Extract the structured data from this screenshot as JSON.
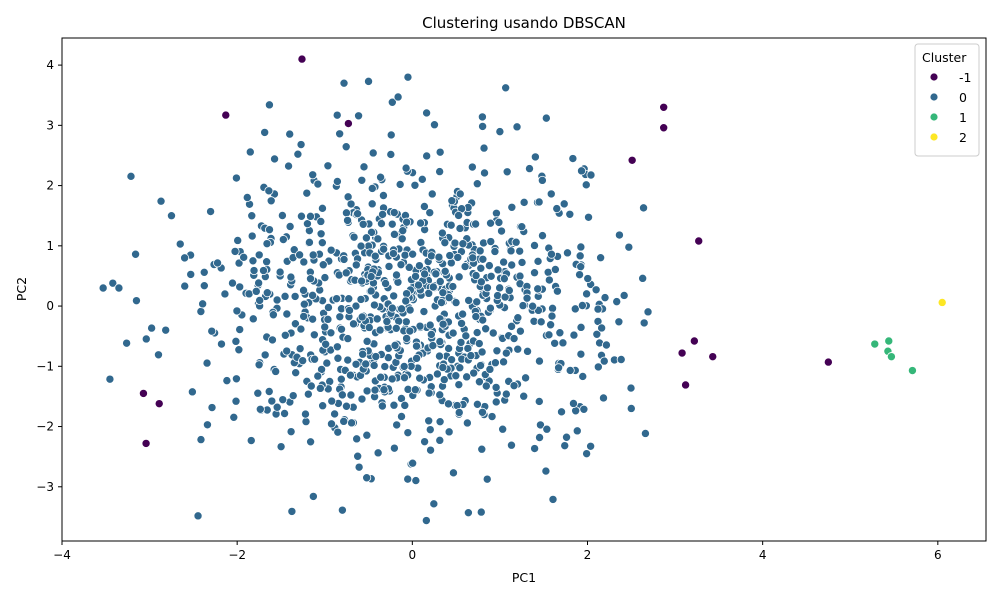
{
  "chart_data": {
    "type": "scatter",
    "title": "Clustering usando DBSCAN",
    "xlabel": "PC1",
    "ylabel": "PC2",
    "xlim": [
      -4.0,
      6.55
    ],
    "ylim": [
      -3.9,
      4.45
    ],
    "xticks": [
      -4,
      -2,
      0,
      2,
      4,
      6
    ],
    "yticks": [
      -3,
      -2,
      -1,
      0,
      1,
      2,
      3,
      4
    ],
    "grid": false,
    "legend": {
      "title": "Cluster",
      "placement": "top-right",
      "entries": [
        {
          "label": "-1",
          "color": "#440154"
        },
        {
          "label": "0",
          "color": "#31688e"
        },
        {
          "label": "1",
          "color": "#35b779"
        },
        {
          "label": "2",
          "color": "#fde725"
        }
      ]
    },
    "series": [
      {
        "name": "-1",
        "color": "#440154",
        "points": [
          [
            -1.26,
            4.1
          ],
          [
            -2.13,
            3.17
          ],
          [
            -0.73,
            3.03
          ],
          [
            2.87,
            3.3
          ],
          [
            2.87,
            2.96
          ],
          [
            2.51,
            2.42
          ],
          [
            3.27,
            1.08
          ],
          [
            3.22,
            -0.58
          ],
          [
            3.08,
            -0.78
          ],
          [
            3.43,
            -0.84
          ],
          [
            4.75,
            -0.93
          ],
          [
            3.12,
            -1.31
          ],
          [
            -3.07,
            -1.45
          ],
          [
            -2.89,
            -1.62
          ],
          [
            -3.04,
            -2.28
          ]
        ]
      },
      {
        "name": "0",
        "color": "#31688e",
        "count": 980,
        "seed": 7,
        "mean": [
          0,
          0
        ],
        "sd": [
          1.15,
          1.2
        ],
        "range_x": [
          -3.55,
          2.7
        ],
        "range_y": [
          -3.6,
          3.8
        ],
        "points": [
          [
            -3.53,
            0.3
          ],
          [
            -3.42,
            0.38
          ],
          [
            -3.35,
            0.3
          ],
          [
            -3.16,
            0.86
          ],
          [
            -3.15,
            0.09
          ],
          [
            -2.75,
            1.5
          ],
          [
            -2.65,
            1.03
          ],
          [
            -2.6,
            0.8
          ],
          [
            -0.05,
            3.8
          ],
          [
            -0.5,
            3.73
          ],
          [
            -0.78,
            3.7
          ],
          [
            0.16,
            -3.56
          ],
          [
            0.64,
            -3.43
          ],
          [
            -1.13,
            -3.16
          ],
          [
            2.64,
            1.63
          ],
          [
            2.63,
            0.46
          ],
          [
            2.5,
            -1.7
          ],
          [
            1.99,
            -2.45
          ],
          [
            1.53,
            3.12
          ],
          [
            0.8,
            3.14
          ]
        ]
      },
      {
        "name": "1",
        "color": "#35b779",
        "points": [
          [
            5.28,
            -0.63
          ],
          [
            5.44,
            -0.58
          ],
          [
            5.43,
            -0.75
          ],
          [
            5.47,
            -0.84
          ],
          [
            5.71,
            -1.07
          ]
        ]
      },
      {
        "name": "2",
        "color": "#fde725",
        "points": [
          [
            6.05,
            0.06
          ]
        ]
      }
    ]
  }
}
